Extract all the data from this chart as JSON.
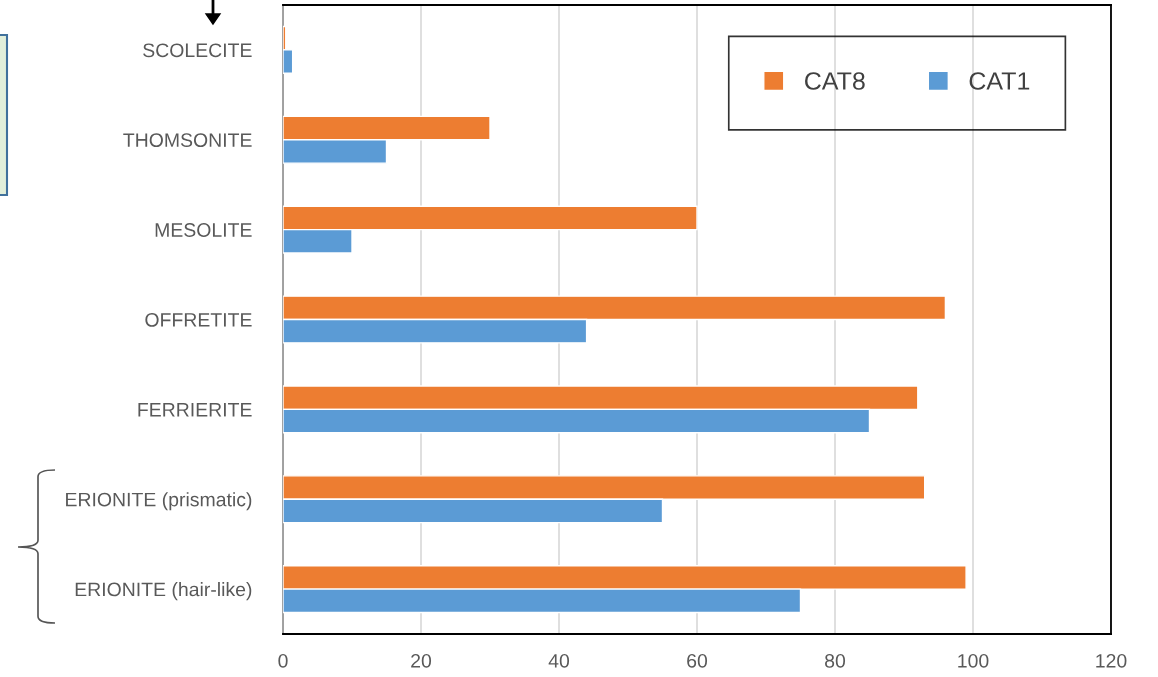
{
  "chart_data": {
    "type": "bar",
    "orientation": "horizontal",
    "categories": [
      "SCOLECITE",
      "THOMSONITE",
      "MESOLITE",
      "OFFRETITE",
      "FERRIERITE",
      "ERIONITE (prismatic)",
      "ERIONITE (hair-like)"
    ],
    "series": [
      {
        "name": "CAT8",
        "color": "#ed7d31",
        "values": [
          0.4,
          30,
          60,
          96,
          92,
          93,
          99
        ]
      },
      {
        "name": "CAT1",
        "color": "#5b9bd5",
        "values": [
          1.4,
          15,
          10,
          44,
          85,
          55,
          75
        ]
      }
    ],
    "xlim": [
      0,
      120
    ],
    "xticks": [
      0,
      20,
      40,
      60,
      80,
      100,
      120
    ],
    "grid": "x",
    "legend": "top right"
  }
}
